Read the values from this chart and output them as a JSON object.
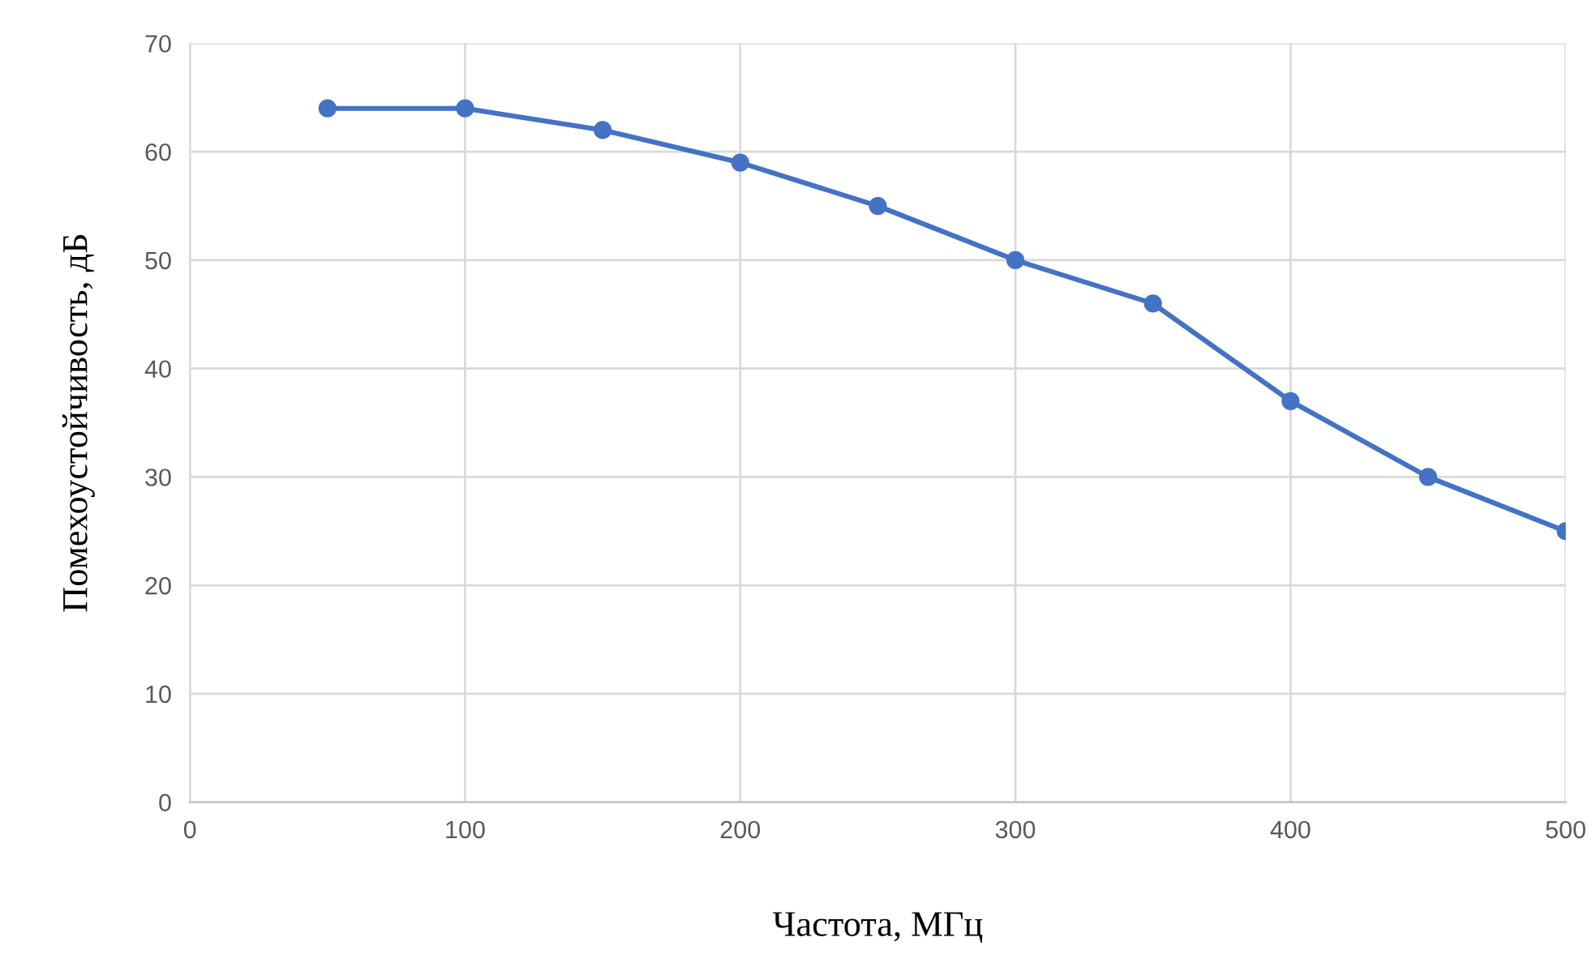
{
  "chart_data": {
    "type": "line",
    "xlabel": "Частота, МГц",
    "ylabel": "Помехоустойчивость, дБ",
    "x": [
      50,
      100,
      150,
      200,
      250,
      300,
      350,
      400,
      450,
      500
    ],
    "series": [
      {
        "color": "#4472c4",
        "values": [
          64,
          64,
          62,
          59,
          55,
          50,
          46,
          37,
          30,
          25
        ]
      }
    ],
    "xlim": [
      0,
      500
    ],
    "xticks": [
      0,
      100,
      200,
      300,
      400,
      500
    ],
    "ylim": [
      0,
      70
    ],
    "yticks": [
      0,
      10,
      20,
      30,
      40,
      50,
      60,
      70
    ],
    "grid": true,
    "marker": "circle",
    "line_style": "solid",
    "legend": false
  }
}
